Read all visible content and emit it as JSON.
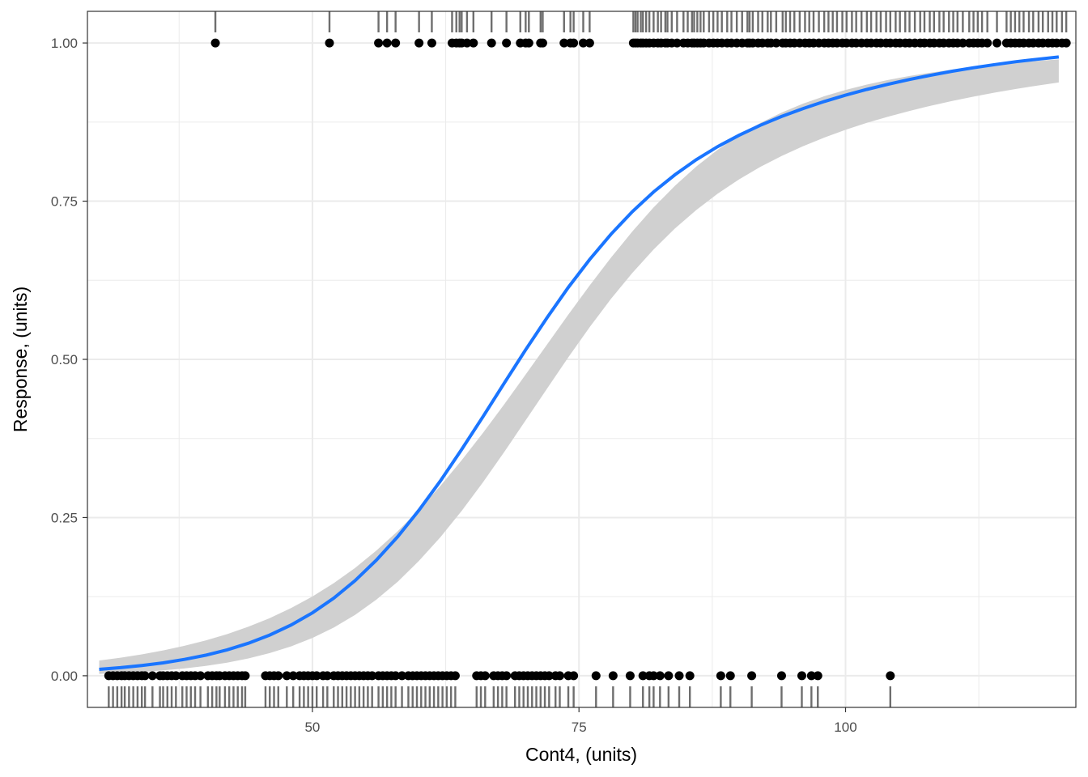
{
  "chart_data": {
    "type": "scatter",
    "title": "",
    "xlabel": "Cont4, (units)",
    "ylabel": "Response, (units)",
    "xlim": [
      28.9,
      121.6
    ],
    "ylim": [
      -0.05,
      1.05
    ],
    "xticks": [
      50,
      75,
      100
    ],
    "yticks": [
      0.0,
      0.25,
      0.5,
      0.75,
      1.0
    ],
    "ytick_labels": [
      "0.00",
      "0.25",
      "0.50",
      "0.75",
      "1.00"
    ],
    "grid": true,
    "legend": "none",
    "colors": {
      "fit_line": "#1a75ff",
      "ribbon": "#d0d0d0",
      "points": "#000000",
      "rug": "#6e6e6e",
      "grid": "#ebebeb"
    },
    "points_y1_x": [
      40.9,
      51.6,
      56.2,
      57.0,
      57.8,
      60.0,
      61.2,
      63.1,
      63.5,
      63.8,
      64.0,
      64.5,
      65.1,
      66.8,
      68.2,
      69.5,
      70.0,
      70.3,
      71.4,
      71.6,
      73.6,
      74.2,
      74.5,
      75.4,
      76.0,
      80.1,
      80.3,
      80.5,
      80.8,
      81.0,
      81.3,
      81.6,
      82.0,
      82.4,
      82.7,
      83.1,
      83.3,
      83.7,
      84.2,
      84.8,
      85.2,
      85.6,
      85.8,
      86.1,
      86.4,
      86.7,
      87.2,
      87.6,
      88.0,
      88.4,
      88.9,
      89.3,
      89.8,
      90.3,
      90.8,
      91.0,
      91.3,
      91.8,
      92.2,
      92.7,
      93.0,
      93.5,
      94.1,
      94.4,
      94.8,
      95.2,
      95.7,
      96.2,
      96.6,
      97.0,
      97.5,
      98.0,
      98.4,
      98.8,
      99.2,
      99.7,
      100.1,
      100.6,
      101.0,
      101.5,
      102.0,
      102.4,
      102.9,
      103.3,
      103.8,
      104.2,
      104.7,
      105.1,
      105.6,
      106.0,
      106.5,
      107.0,
      107.4,
      107.9,
      108.3,
      108.8,
      109.2,
      109.7,
      110.1,
      110.5,
      111.0,
      111.6,
      112.0,
      112.4,
      112.8,
      113.3,
      114.2,
      115.1,
      115.5,
      115.9,
      116.3,
      116.7,
      117.2,
      117.6,
      118.1,
      118.5,
      119.0,
      119.4,
      119.8,
      120.3,
      120.7
    ],
    "points_y0_x": [
      30.9,
      31.3,
      31.7,
      32.1,
      32.4,
      32.8,
      33.2,
      33.6,
      34.0,
      34.3,
      35.0,
      35.7,
      36.0,
      36.4,
      36.8,
      37.2,
      37.8,
      38.2,
      38.6,
      39.0,
      39.5,
      40.2,
      40.6,
      41.0,
      41.3,
      41.8,
      42.2,
      42.6,
      43.0,
      43.4,
      43.7,
      45.6,
      46.0,
      46.4,
      46.8,
      47.6,
      48.2,
      48.8,
      49.2,
      49.6,
      50.0,
      50.4,
      51.0,
      51.4,
      52.0,
      52.4,
      52.8,
      53.2,
      53.6,
      54.0,
      54.4,
      54.8,
      55.2,
      55.6,
      56.2,
      56.6,
      57.0,
      57.4,
      57.8,
      58.4,
      59.0,
      59.4,
      59.8,
      60.2,
      60.6,
      61.0,
      61.4,
      61.8,
      62.2,
      62.6,
      63.0,
      63.4,
      65.4,
      65.8,
      66.2,
      67.0,
      67.4,
      67.8,
      68.2,
      69.0,
      69.4,
      69.8,
      70.2,
      70.6,
      71.0,
      71.4,
      71.8,
      72.2,
      72.8,
      73.2,
      74.0,
      74.5,
      76.6,
      78.2,
      79.8,
      81.0,
      81.6,
      82.0,
      82.6,
      83.4,
      84.4,
      85.4,
      88.3,
      89.2,
      91.2,
      94.0,
      95.9,
      96.8,
      97.4,
      104.2
    ],
    "fit": {
      "x": [
        30.0,
        32.0,
        34.0,
        36.0,
        38.0,
        40.0,
        42.0,
        44.0,
        46.0,
        48.0,
        50.0,
        52.0,
        54.0,
        56.0,
        58.0,
        60.0,
        62.0,
        64.0,
        66.0,
        68.0,
        70.0,
        72.0,
        74.0,
        76.0,
        78.0,
        80.0,
        82.0,
        84.0,
        86.0,
        88.0,
        90.0,
        92.0,
        94.0,
        96.0,
        98.0,
        100.0,
        102.0,
        104.0,
        106.0,
        108.0,
        110.0,
        112.0,
        114.0,
        116.0,
        118.0,
        120.0
      ],
      "y": [
        0.0101,
        0.0128,
        0.0162,
        0.0204,
        0.0258,
        0.0325,
        0.0409,
        0.0514,
        0.0643,
        0.0802,
        0.0994,
        0.1227,
        0.1503,
        0.1826,
        0.2198,
        0.2617,
        0.3079,
        0.3576,
        0.4096,
        0.4626,
        0.5151,
        0.5658,
        0.6137,
        0.6578,
        0.6978,
        0.7334,
        0.7646,
        0.7918,
        0.8155,
        0.8361,
        0.8541,
        0.8699,
        0.8839,
        0.8963,
        0.9075,
        0.9175,
        0.9266,
        0.9348,
        0.9423,
        0.9491,
        0.9553,
        0.9609,
        0.9659,
        0.9704,
        0.9743,
        0.9778
      ],
      "lower": [
        0.003,
        0.0043,
        0.0061,
        0.0084,
        0.0115,
        0.0155,
        0.0207,
        0.0274,
        0.0358,
        0.0464,
        0.0597,
        0.0761,
        0.0962,
        0.1203,
        0.1487,
        0.1817,
        0.219,
        0.2606,
        0.3058,
        0.3538,
        0.4035,
        0.4537,
        0.5032,
        0.5508,
        0.5955,
        0.6366,
        0.6737,
        0.7068,
        0.736,
        0.7617,
        0.7842,
        0.804,
        0.8214,
        0.8368,
        0.8505,
        0.8627,
        0.8737,
        0.8836,
        0.8926,
        0.9008,
        0.9083,
        0.9152,
        0.9216,
        0.9274,
        0.9327,
        0.9376
      ],
      "upper": [
        0.024,
        0.0285,
        0.0338,
        0.04,
        0.0473,
        0.0558,
        0.0658,
        0.0775,
        0.0911,
        0.1069,
        0.1252,
        0.1463,
        0.1704,
        0.1977,
        0.2284,
        0.2625,
        0.3,
        0.3406,
        0.3838,
        0.4292,
        0.476,
        0.5234,
        0.5706,
        0.6166,
        0.6607,
        0.7021,
        0.7401,
        0.7744,
        0.8047,
        0.8312,
        0.854,
        0.8735,
        0.89,
        0.904,
        0.9158,
        0.9258,
        0.9343,
        0.9416,
        0.9478,
        0.9532,
        0.9579,
        0.962,
        0.9656,
        0.9688,
        0.9716,
        0.974
      ]
    }
  }
}
